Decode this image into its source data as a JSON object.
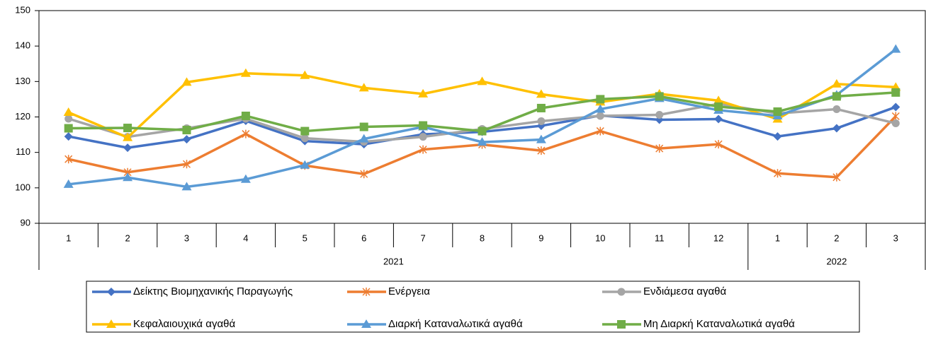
{
  "chart_data": {
    "type": "line",
    "groups": [
      {
        "label": "2021",
        "categories": [
          "1",
          "2",
          "3",
          "4",
          "5",
          "6",
          "7",
          "8",
          "9",
          "10",
          "11",
          "12"
        ]
      },
      {
        "label": "2022",
        "categories": [
          "1",
          "2",
          "3"
        ]
      }
    ],
    "ylim": [
      90,
      150
    ],
    "yticks": [
      90,
      100,
      110,
      120,
      130,
      140,
      150
    ],
    "grid": false,
    "legend_position": "bottom",
    "series": [
      {
        "name": "Δείκτης Βιομηχανικής Παραγωγής",
        "color": "#4472c4",
        "marker": "diamond",
        "values": [
          114.5,
          111.3,
          113.7,
          118.9,
          113.2,
          112.3,
          115.1,
          115.8,
          117.5,
          120.4,
          119.2,
          119.4,
          114.5,
          116.8,
          122.8
        ]
      },
      {
        "name": "Ενέργεια",
        "color": "#ed7d31",
        "marker": "asterisk",
        "values": [
          108.1,
          104.4,
          106.7,
          115.2,
          106.3,
          103.9,
          110.8,
          112.2,
          110.5,
          116.0,
          111.1,
          112.3,
          104.1,
          103.0,
          120.2
        ]
      },
      {
        "name": "Ενδιάμεσα αγαθά",
        "color": "#a5a5a5",
        "marker": "circle",
        "values": [
          119.5,
          114.4,
          116.8,
          119.5,
          114.0,
          113.0,
          114.4,
          116.6,
          118.8,
          120.3,
          120.6,
          123.7,
          121.0,
          122.2,
          118.2
        ]
      },
      {
        "name": "Κεφαλαιουχικά αγαθά",
        "color": "#ffc000",
        "marker": "triangle",
        "values": [
          121.3,
          114.2,
          129.8,
          132.3,
          131.7,
          128.2,
          126.5,
          130.0,
          126.4,
          124.2,
          126.5,
          124.6,
          119.4,
          129.3,
          128.4
        ]
      },
      {
        "name": "Διαρκή Καταναλωτικά αγαθά",
        "color": "#5b9bd5",
        "marker": "triangle",
        "values": [
          101.0,
          102.9,
          100.3,
          102.4,
          106.4,
          113.8,
          117.2,
          112.9,
          113.6,
          122.2,
          125.2,
          121.9,
          120.3,
          126.2,
          139.1
        ]
      },
      {
        "name": "Μη Διαρκή Καταναλωτικά αγαθά",
        "color": "#70ad47",
        "marker": "square",
        "values": [
          116.8,
          116.9,
          116.3,
          120.3,
          116.0,
          117.2,
          117.6,
          116.0,
          122.5,
          125.0,
          125.8,
          122.9,
          121.5,
          125.8,
          126.9
        ]
      }
    ]
  }
}
